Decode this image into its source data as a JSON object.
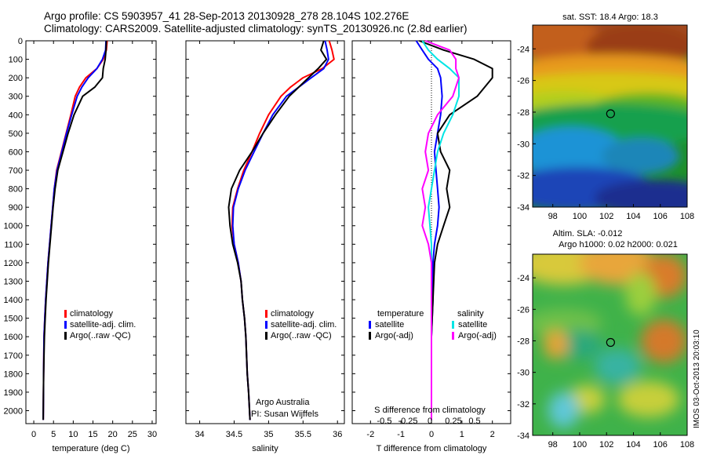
{
  "title": {
    "line1": "Argo profile: CS 5903957_41 28-Sep-2013 20130928_278 28.104S 102.276E",
    "line2": "Climatology: CARS2009. Satellite-adjusted climatology: synTS_20130926.nc (2.8d earlier)"
  },
  "vertical_label": "IMOS 03-Oct-2013 20:03:10",
  "colors": {
    "climatology": "#ff0000",
    "satellite": "#0000ff",
    "argo": "#000000",
    "salinity_satellite": "#00e5e5",
    "salinity_argo": "#ff00ff"
  },
  "chart_data": [
    {
      "type": "line",
      "panel": "temperature",
      "xlabel": "temperature (deg C)",
      "ylabel": "",
      "xlim": [
        -2,
        31
      ],
      "ylim": [
        2070,
        0
      ],
      "xticks": [
        0,
        5,
        10,
        15,
        20,
        25,
        30
      ],
      "yticks": [
        0,
        100,
        200,
        300,
        400,
        500,
        600,
        700,
        800,
        900,
        1000,
        1100,
        1200,
        1300,
        1400,
        1500,
        1600,
        1700,
        1800,
        1900,
        2000
      ],
      "legend": [
        "climatology",
        "satellite-adj. clim.",
        "Argo(..raw -QC)"
      ],
      "series": [
        {
          "name": "climatology",
          "color": "#ff0000",
          "x": [
            18.6,
            18.4,
            17.6,
            16.0,
            13.2,
            11.6,
            10.5,
            9.4,
            8.2,
            7.0,
            5.8,
            5.2,
            4.8,
            4.4,
            4.0,
            3.6,
            3.3,
            3.0,
            2.8,
            2.6,
            2.5,
            2.4
          ],
          "y": [
            0,
            50,
            100,
            150,
            200,
            250,
            300,
            400,
            500,
            600,
            700,
            800,
            900,
            1000,
            1100,
            1200,
            1300,
            1400,
            1500,
            1600,
            1800,
            2050
          ]
        },
        {
          "name": "satellite-adj. clim.",
          "color": "#0000ff",
          "x": [
            18.3,
            18.2,
            17.4,
            16.0,
            13.8,
            12.2,
            11.0,
            9.6,
            8.3,
            7.1,
            5.9,
            5.2,
            4.8,
            4.4,
            4.0,
            3.6,
            3.3,
            3.0,
            2.8,
            2.6,
            2.5,
            2.4
          ],
          "y": [
            0,
            50,
            100,
            150,
            200,
            250,
            300,
            400,
            500,
            600,
            700,
            800,
            900,
            1000,
            1100,
            1200,
            1300,
            1400,
            1500,
            1600,
            1800,
            2050
          ]
        },
        {
          "name": "Argo(..raw -QC)",
          "color": "#000000",
          "x": [
            18.4,
            18.3,
            18.1,
            17.6,
            17.4,
            15.5,
            12.4,
            10.2,
            8.7,
            7.4,
            6.1,
            5.4,
            4.9,
            4.5,
            4.1,
            3.7,
            3.4,
            3.1,
            2.9,
            2.7,
            2.5,
            2.4
          ],
          "y": [
            0,
            50,
            100,
            150,
            200,
            250,
            300,
            400,
            500,
            600,
            700,
            800,
            900,
            1000,
            1100,
            1200,
            1300,
            1400,
            1500,
            1600,
            1800,
            2050
          ]
        }
      ]
    },
    {
      "type": "line",
      "panel": "salinity",
      "xlabel": "salinity",
      "ylabel": "",
      "xlim": [
        33.8,
        36.1
      ],
      "ylim": [
        2070,
        0
      ],
      "xticks": [
        34,
        34.5,
        35,
        35.5,
        36
      ],
      "legend": [
        "climatology",
        "satellite-adj. clim.",
        "Argo(..raw -QC)"
      ],
      "annotation": [
        "Argo Australia",
        "PI: Susan Wijffels"
      ],
      "series": [
        {
          "name": "climatology",
          "color": "#ff0000",
          "x": [
            35.88,
            35.92,
            35.95,
            35.78,
            35.5,
            35.32,
            35.18,
            35.0,
            34.87,
            34.76,
            34.64,
            34.55,
            34.48,
            34.47,
            34.5,
            34.56,
            34.6,
            34.62,
            34.65,
            34.67,
            34.69,
            34.71,
            34.73
          ],
          "y": [
            0,
            50,
            100,
            150,
            200,
            250,
            300,
            400,
            500,
            600,
            700,
            800,
            900,
            1000,
            1100,
            1200,
            1300,
            1400,
            1500,
            1600,
            1800,
            1900,
            2050
          ]
        },
        {
          "name": "satellite-adj. clim.",
          "color": "#0000ff",
          "x": [
            35.82,
            35.85,
            35.87,
            35.8,
            35.62,
            35.44,
            35.26,
            35.06,
            34.92,
            34.79,
            34.66,
            34.56,
            34.49,
            34.48,
            34.5,
            34.56,
            34.6,
            34.62,
            34.65,
            34.67,
            34.69,
            34.71,
            34.73
          ],
          "y": [
            0,
            50,
            100,
            150,
            200,
            250,
            300,
            400,
            500,
            600,
            700,
            800,
            900,
            1000,
            1100,
            1200,
            1300,
            1400,
            1500,
            1600,
            1800,
            1900,
            2050
          ]
        },
        {
          "name": "Argo(..raw -QC)",
          "color": "#000000",
          "x": [
            35.8,
            35.76,
            35.84,
            35.72,
            35.58,
            35.44,
            35.3,
            35.1,
            34.92,
            34.76,
            34.58,
            34.46,
            34.42,
            34.44,
            34.48,
            34.55,
            34.6,
            34.62,
            34.65,
            34.67,
            34.69,
            34.71,
            34.73
          ],
          "y": [
            0,
            50,
            100,
            150,
            200,
            250,
            300,
            400,
            500,
            600,
            700,
            800,
            900,
            1000,
            1100,
            1200,
            1300,
            1400,
            1500,
            1600,
            1800,
            1900,
            2050
          ]
        }
      ]
    },
    {
      "type": "line",
      "panel": "differences",
      "xlabel": "T difference from climatology",
      "top_label": "S difference from climatology",
      "xlim": [
        -2.6,
        2.6
      ],
      "ylim": [
        2070,
        0
      ],
      "xticks": [
        -2,
        -1,
        0,
        1,
        2
      ],
      "top_ticks": [
        "-0.5",
        "-0.25",
        "0",
        "0.25",
        "0.5"
      ],
      "legend_headers": [
        "temperature",
        "salinity"
      ],
      "legend": [
        "satellite",
        "Argo(-adj)",
        "satellite",
        "Argo(-adj)"
      ],
      "series": [
        {
          "name": "T satellite",
          "color": "#0000ff",
          "x": [
            -0.5,
            -0.3,
            -0.1,
            0.2,
            0.3,
            0.35,
            0.3,
            0.2,
            0.1,
            0.15,
            0.2,
            0.25,
            0.2,
            0.1,
            0.05,
            0.05,
            0.0,
            0.0,
            0.0
          ],
          "y": [
            0,
            50,
            100,
            150,
            200,
            300,
            400,
            500,
            600,
            700,
            800,
            900,
            1000,
            1100,
            1200,
            1400,
            1600,
            1800,
            2050
          ]
        },
        {
          "name": "T Argo(-adj)",
          "color": "#000000",
          "x": [
            -0.4,
            0.4,
            1.4,
            2.0,
            2.0,
            1.5,
            0.6,
            0.2,
            0.3,
            0.6,
            0.5,
            0.6,
            0.4,
            0.2,
            0.1,
            0.05,
            0.0,
            0.0,
            0.0
          ],
          "y": [
            0,
            50,
            100,
            150,
            200,
            300,
            400,
            500,
            600,
            700,
            800,
            900,
            1000,
            1100,
            1200,
            1400,
            1600,
            1800,
            2050
          ]
        },
        {
          "name": "S satellite",
          "color": "#00e5e5",
          "x": [
            -0.3,
            -0.1,
            0.2,
            0.6,
            0.9,
            0.9,
            0.7,
            0.4,
            0.2,
            0.1,
            0.0,
            -0.1,
            -0.05,
            0.0,
            0.0,
            0.0,
            0.0,
            0.0,
            0.0
          ],
          "y": [
            0,
            50,
            100,
            150,
            200,
            300,
            400,
            500,
            600,
            700,
            800,
            900,
            1000,
            1100,
            1200,
            1400,
            1600,
            1800,
            2050
          ]
        },
        {
          "name": "S Argo(-adj)",
          "color": "#ff00ff",
          "x": [
            -0.2,
            0.6,
            0.8,
            0.8,
            0.9,
            0.7,
            0.2,
            -0.1,
            -0.2,
            -0.1,
            -0.3,
            -0.2,
            -0.3,
            -0.1,
            0.0,
            0.0,
            0.0,
            0.0,
            0.0
          ],
          "y": [
            0,
            50,
            100,
            150,
            200,
            300,
            400,
            500,
            600,
            700,
            800,
            900,
            1000,
            1100,
            1200,
            1400,
            1600,
            1800,
            2050
          ]
        }
      ]
    },
    {
      "type": "heatmap",
      "panel": "sst_map",
      "title": "sat. SST: 18.4 Argo: 18.3",
      "xlim": [
        96.5,
        108
      ],
      "ylim": [
        -34,
        -22.5
      ],
      "xticks": [
        98,
        100,
        102,
        104,
        106,
        108
      ],
      "yticks": [
        -24,
        -26,
        -28,
        -30,
        -32,
        -34
      ],
      "marker": {
        "lon": 102.3,
        "lat": -28.1
      }
    },
    {
      "type": "heatmap",
      "panel": "sla_map",
      "title": [
        "Altim. SLA: -0.012",
        "Argo h1000: 0.02 h2000: 0.021"
      ],
      "xlim": [
        96.5,
        108
      ],
      "ylim": [
        -34,
        -22.5
      ],
      "xticks": [
        98,
        100,
        102,
        104,
        106,
        108
      ],
      "yticks": [
        -24,
        -26,
        -28,
        -30,
        -32,
        -34
      ],
      "marker": {
        "lon": 102.3,
        "lat": -28.1
      }
    }
  ]
}
